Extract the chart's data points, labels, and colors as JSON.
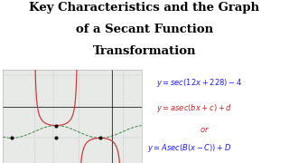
{
  "title_line1": "Key Characteristics and the Graph",
  "title_line2": "of a Secant Function",
  "title_line3": "Transformation",
  "title_fontsize": 9.5,
  "title_fontweight": "bold",
  "bg_color": "#ffffff",
  "graph_bg": "#e8eae8",
  "eq1": "y = sec(12x + 228) - 4",
  "eq2": "y = asec(bx + c) + d",
  "eq3": "or",
  "eq4": "y = Asec(B(x - C)) + D",
  "eq1_color": "#1a1aff",
  "eq2_color": "#cc2222",
  "eq3_color": "#cc2222",
  "eq4_color": "#1a1aff",
  "graph_xlim": [
    -37,
    10
  ],
  "graph_ylim": [
    -9,
    6
  ],
  "sec_color": "#cc3333",
  "cos_color": "#227722",
  "grid_color": "#c8c8c8",
  "b": 12,
  "phase_deg": 228,
  "vertical_shift": -4
}
